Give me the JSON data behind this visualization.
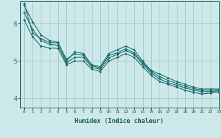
{
  "xlabel": "Humidex (Indice chaleur)",
  "bg_color": "#cce8e8",
  "grid_color": "#aac8c8",
  "line_color": "#1a6b6b",
  "xlim": [
    -0.5,
    23
  ],
  "ylim": [
    3.75,
    6.6
  ],
  "xticks": [
    0,
    1,
    2,
    3,
    4,
    5,
    6,
    7,
    8,
    9,
    10,
    11,
    12,
    13,
    14,
    15,
    16,
    17,
    18,
    19,
    20,
    21,
    22,
    23
  ],
  "yticks": [
    4,
    5,
    6
  ],
  "series": [
    [
      6.5,
      6.05,
      5.7,
      5.55,
      5.5,
      5.0,
      5.25,
      5.2,
      4.9,
      4.85,
      5.2,
      5.3,
      5.4,
      5.3,
      5.0,
      4.75,
      4.65,
      4.55,
      4.45,
      4.38,
      4.3,
      4.25,
      4.25,
      4.25
    ],
    [
      6.3,
      5.85,
      5.55,
      5.45,
      5.42,
      4.95,
      5.1,
      5.1,
      4.83,
      4.78,
      5.08,
      5.18,
      5.28,
      5.18,
      4.92,
      4.68,
      4.52,
      4.42,
      4.35,
      4.28,
      4.22,
      4.18,
      4.18,
      4.2
    ],
    [
      6.1,
      5.65,
      5.4,
      5.35,
      5.34,
      4.9,
      5.0,
      5.0,
      4.78,
      4.72,
      5.0,
      5.1,
      5.2,
      5.1,
      4.85,
      4.62,
      4.45,
      4.38,
      4.3,
      4.22,
      4.16,
      4.12,
      4.14,
      4.16
    ],
    [
      6.55,
      5.75,
      5.6,
      5.5,
      5.48,
      5.05,
      5.2,
      5.15,
      4.87,
      4.82,
      5.15,
      5.22,
      5.33,
      5.22,
      4.96,
      4.72,
      4.58,
      4.48,
      4.4,
      4.33,
      4.26,
      4.22,
      4.22,
      4.22
    ]
  ]
}
